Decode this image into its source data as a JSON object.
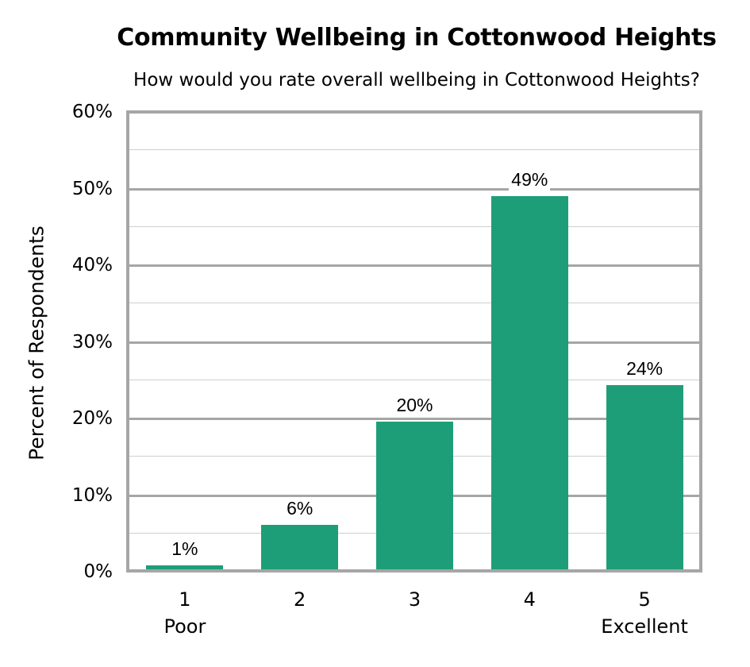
{
  "chart_data": {
    "type": "bar",
    "title": "Community Wellbeing in Cottonwood Heights",
    "subtitle": "How would you rate overall wellbeing in Cottonwood Heights?",
    "xlabel": "",
    "ylabel": "Percent of Respondents",
    "categories": [
      "1",
      "2",
      "3",
      "4",
      "5"
    ],
    "category_sublabels": [
      "Poor",
      "",
      "",
      "",
      "Excellent"
    ],
    "values": [
      1,
      6,
      20,
      49,
      24
    ],
    "value_labels": [
      "1%",
      "6%",
      "20%",
      "49%",
      "24%"
    ],
    "ylim": [
      0,
      60
    ],
    "yticks": [
      "0%",
      "10%",
      "20%",
      "30%",
      "40%",
      "50%",
      "60%"
    ],
    "grid": true,
    "legend": null,
    "bar_color": "#1e9e78"
  },
  "colors": {
    "bar": "#1e9e78",
    "frame": "#a6a6a6",
    "minor_grid": "#cfcfcf"
  }
}
